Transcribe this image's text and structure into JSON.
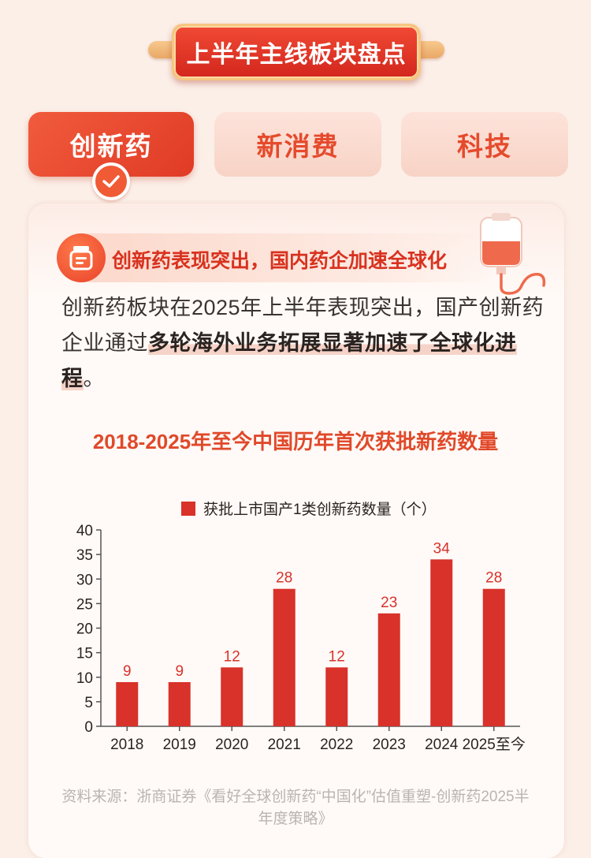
{
  "banner": {
    "title": "上半年主线板块盘点"
  },
  "tabs": [
    {
      "label": "创新药",
      "active": true
    },
    {
      "label": "新消费",
      "active": false
    },
    {
      "label": "科技",
      "active": false
    }
  ],
  "section": {
    "heading": "创新药表现突出，国内药企加速全球化",
    "para_plain_1": "创新药板块在2025年上半年表现突出，国产创新药企业通过",
    "para_bold": "多轮海外业务拓展显著加速了全球化进程",
    "para_plain_2": "。"
  },
  "colors": {
    "accent": "#e0492a",
    "bar": "#d8322a",
    "text": "#3a3431",
    "source": "#b9b4b1"
  },
  "chart_data": {
    "type": "bar",
    "title": "2018-2025年至今中国历年首次获批新药数量",
    "categories": [
      "2018",
      "2019",
      "2020",
      "2021",
      "2022",
      "2023",
      "2024",
      "2025至今"
    ],
    "series": [
      {
        "name": "获批上市国产1类创新药数量（个）",
        "values": [
          9,
          9,
          12,
          28,
          12,
          23,
          34,
          28
        ]
      }
    ],
    "ylim": [
      0,
      40
    ],
    "yticks": [
      0,
      5,
      10,
      15,
      20,
      25,
      30,
      35,
      40
    ],
    "grid": false,
    "legend": "top-center",
    "data_labels": true
  },
  "source": "资料来源：浙商证券《看好全球创新药“中国化”估值重塑-创新药2025半年度策略》"
}
